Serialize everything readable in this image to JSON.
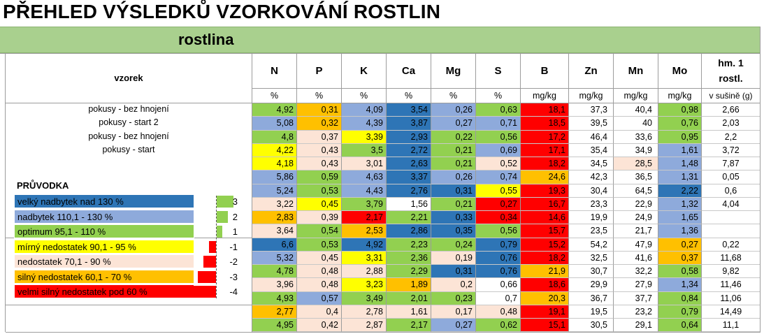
{
  "title": "PŘEHLED VÝSLEDKŮ VZORKOVÁNÍ ROSTLIN",
  "section": "rostlina",
  "header": {
    "sample_col": "vzorek",
    "columns": [
      {
        "name": "N",
        "unit": "%"
      },
      {
        "name": "P",
        "unit": "%"
      },
      {
        "name": "K",
        "unit": "%"
      },
      {
        "name": "Ca",
        "unit": "%"
      },
      {
        "name": "Mg",
        "unit": "%"
      },
      {
        "name": "S",
        "unit": "%"
      },
      {
        "name": "B",
        "unit": "mg/kg"
      },
      {
        "name": "Zn",
        "unit": "mg/kg"
      },
      {
        "name": "Mn",
        "unit": "mg/kg"
      },
      {
        "name": "Mo",
        "unit": "mg/kg"
      },
      {
        "name": "hm. 1 rostl.",
        "unit": "v sušině (g)"
      }
    ]
  },
  "colors": {
    "dark_blue": "#2e75b6",
    "light_blue": "#8eaadb",
    "green": "#92d050",
    "yellow": "#ffff00",
    "pink": "#fce4d6",
    "orange": "#ffc000",
    "red": "#ff0000",
    "white": "#ffffff"
  },
  "rows": [
    {
      "sample": "pokusy - bez hnojení",
      "values": [
        "4,92",
        "0,31",
        "4,09",
        "3,54",
        "0,26",
        "0,63",
        "18,1",
        "37,3",
        "40,4",
        "0,98",
        "2,66"
      ],
      "colors": [
        "green",
        "orange",
        "light_blue",
        "dark_blue",
        "light_blue",
        "green",
        "red",
        "white",
        "white",
        "green",
        "white"
      ]
    },
    {
      "sample": "pokusy - start 2",
      "values": [
        "5,08",
        "0,32",
        "4,39",
        "3,87",
        "0,27",
        "0,71",
        "18,5",
        "39,5",
        "40",
        "0,76",
        "2,03"
      ],
      "colors": [
        "light_blue",
        "orange",
        "light_blue",
        "dark_blue",
        "light_blue",
        "light_blue",
        "red",
        "white",
        "white",
        "green",
        "white"
      ]
    },
    {
      "sample": "pokusy - bez hnojení",
      "values": [
        "4,8",
        "0,37",
        "3,39",
        "2,93",
        "0,22",
        "0,56",
        "17,2",
        "46,4",
        "33,6",
        "0,95",
        "2,2"
      ],
      "colors": [
        "green",
        "pink",
        "yellow",
        "dark_blue",
        "green",
        "green",
        "red",
        "white",
        "white",
        "green",
        "white"
      ]
    },
    {
      "sample": "pokusy - start",
      "values": [
        "4,22",
        "0,43",
        "3,5",
        "2,72",
        "0,21",
        "0,69",
        "17,1",
        "35,4",
        "34,9",
        "1,61",
        "3,72"
      ],
      "colors": [
        "yellow",
        "pink",
        "green",
        "dark_blue",
        "green",
        "light_blue",
        "red",
        "white",
        "white",
        "light_blue",
        "white"
      ]
    },
    {
      "sample": "",
      "values": [
        "4,18",
        "0,43",
        "3,01",
        "2,63",
        "0,21",
        "0,52",
        "18,2",
        "34,5",
        "28,5",
        "1,48",
        "7,87"
      ],
      "colors": [
        "yellow",
        "pink",
        "pink",
        "dark_blue",
        "green",
        "pink",
        "red",
        "white",
        "pink",
        "light_blue",
        "white"
      ]
    },
    {
      "sample": "",
      "values": [
        "5,86",
        "0,59",
        "4,63",
        "3,37",
        "0,26",
        "0,74",
        "24,6",
        "42,3",
        "36,5",
        "1,31",
        "0,05"
      ],
      "colors": [
        "light_blue",
        "green",
        "light_blue",
        "dark_blue",
        "light_blue",
        "light_blue",
        "orange",
        "white",
        "white",
        "light_blue",
        "white"
      ]
    },
    {
      "sample": "",
      "values": [
        "5,24",
        "0,53",
        "4,43",
        "2,76",
        "0,31",
        "0,55",
        "19,3",
        "30,4",
        "64,5",
        "2,22",
        "0,6"
      ],
      "colors": [
        "light_blue",
        "green",
        "light_blue",
        "dark_blue",
        "dark_blue",
        "yellow",
        "red",
        "white",
        "white",
        "dark_blue",
        "white"
      ]
    },
    {
      "sample": "",
      "values": [
        "3,22",
        "0,45",
        "3,79",
        "1,56",
        "0,21",
        "0,27",
        "16,7",
        "23,3",
        "22,9",
        "1,32",
        "4,04"
      ],
      "colors": [
        "pink",
        "yellow",
        "green",
        "white",
        "green",
        "red",
        "red",
        "white",
        "white",
        "light_blue",
        "white"
      ]
    },
    {
      "sample": "",
      "values": [
        "2,83",
        "0,39",
        "2,17",
        "2,21",
        "0,33",
        "0,34",
        "14,6",
        "19,9",
        "24,9",
        "1,65",
        ""
      ],
      "colors": [
        "orange",
        "pink",
        "red",
        "green",
        "dark_blue",
        "red",
        "red",
        "white",
        "white",
        "light_blue",
        "white"
      ]
    },
    {
      "sample": "",
      "values": [
        "3,64",
        "0,54",
        "2,53",
        "2,86",
        "0,35",
        "0,56",
        "15,7",
        "23,5",
        "21,7",
        "1,36",
        ""
      ],
      "colors": [
        "pink",
        "green",
        "orange",
        "dark_blue",
        "dark_blue",
        "green",
        "red",
        "white",
        "white",
        "light_blue",
        "white"
      ]
    },
    {
      "sample": "",
      "values": [
        "6,6",
        "0,53",
        "4,92",
        "2,23",
        "0,24",
        "0,79",
        "15,2",
        "54,2",
        "47,9",
        "0,27",
        "0,22"
      ],
      "colors": [
        "dark_blue",
        "green",
        "dark_blue",
        "green",
        "green",
        "dark_blue",
        "red",
        "white",
        "white",
        "orange",
        "white"
      ]
    },
    {
      "sample": "",
      "values": [
        "5,32",
        "0,45",
        "3,31",
        "2,36",
        "0,19",
        "0,76",
        "18,2",
        "32,5",
        "41,6",
        "0,37",
        "11,68"
      ],
      "colors": [
        "light_blue",
        "pink",
        "yellow",
        "green",
        "pink",
        "dark_blue",
        "red",
        "white",
        "white",
        "orange",
        "white"
      ]
    },
    {
      "sample": "",
      "values": [
        "4,78",
        "0,48",
        "2,88",
        "2,29",
        "0,31",
        "0,76",
        "21,9",
        "30,7",
        "32,2",
        "0,58",
        "9,82"
      ],
      "colors": [
        "green",
        "pink",
        "pink",
        "green",
        "dark_blue",
        "dark_blue",
        "orange",
        "white",
        "white",
        "green",
        "white"
      ]
    },
    {
      "sample": "",
      "values": [
        "3,96",
        "0,48",
        "3,23",
        "1,89",
        "0,2",
        "0,66",
        "18,6",
        "29,9",
        "27,9",
        "1,34",
        "11,46"
      ],
      "colors": [
        "pink",
        "pink",
        "yellow",
        "orange",
        "pink",
        "white",
        "red",
        "white",
        "white",
        "light_blue",
        "white"
      ]
    },
    {
      "sample": "",
      "values": [
        "4,93",
        "0,57",
        "3,49",
        "2,01",
        "0,23",
        "0,7",
        "20,3",
        "36,7",
        "37,7",
        "0,84",
        "11,06"
      ],
      "colors": [
        "green",
        "light_blue",
        "green",
        "green",
        "green",
        "white",
        "orange",
        "white",
        "white",
        "green",
        "white"
      ]
    },
    {
      "sample": "",
      "values": [
        "2,77",
        "0,4",
        "2,78",
        "1,61",
        "0,17",
        "0,48",
        "19,1",
        "19,5",
        "23,2",
        "0,79",
        "14,49"
      ],
      "colors": [
        "orange",
        "pink",
        "pink",
        "pink",
        "pink",
        "pink",
        "red",
        "white",
        "white",
        "green",
        "white"
      ]
    },
    {
      "sample": "",
      "values": [
        "4,95",
        "0,42",
        "2,87",
        "2,17",
        "0,27",
        "0,62",
        "15,1",
        "30,5",
        "29,1",
        "0,64",
        "11,1"
      ],
      "colors": [
        "green",
        "pink",
        "pink",
        "green",
        "light_blue",
        "green",
        "red",
        "white",
        "white",
        "green",
        "white"
      ]
    }
  ],
  "legend": {
    "title": "PRŮVODKA",
    "items": [
      {
        "label": "velký nadbytek nad 130 %",
        "color": "dark_blue",
        "score": "3"
      },
      {
        "label": "nadbytek 110,1 - 130 %",
        "color": "light_blue",
        "score": "2"
      },
      {
        "label": "optimum 95,1 - 110 %",
        "color": "green",
        "score": "1"
      },
      {
        "label": "mírný nedostatek 90,1 - 95 %",
        "color": "yellow",
        "score": "-1"
      },
      {
        "label": "nedostatek 70,1 - 90 %",
        "color": "pink",
        "score": "-2"
      },
      {
        "label": "silný nedostatek 60,1 - 70 %",
        "color": "orange",
        "score": "-3"
      },
      {
        "label": "velmi silný nedostatek pod 60 %",
        "color": "red",
        "score": "-4"
      }
    ]
  }
}
